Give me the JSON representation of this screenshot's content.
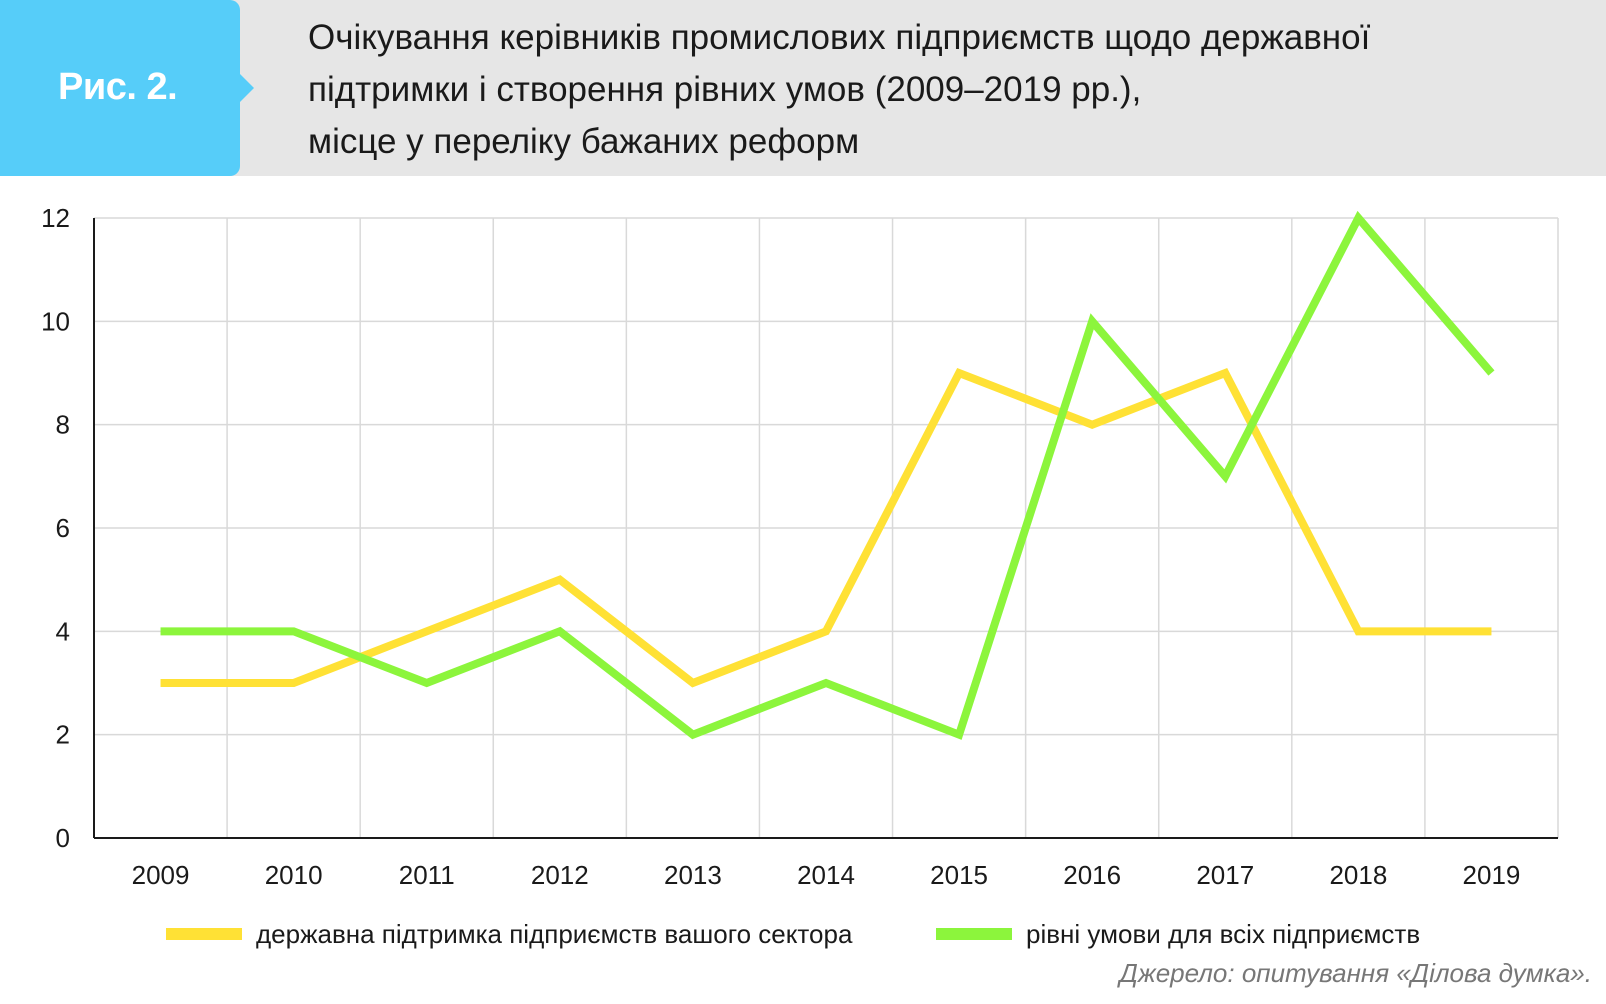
{
  "header": {
    "figure_label": "Рис. 2.",
    "title_lines": [
      "Очікування керівників промислових підприємств щодо державної",
      "підтримки і створення рівних умов (2009–2019 рр.),",
      "місце у переліку бажаних реформ"
    ]
  },
  "chart_data": {
    "type": "line",
    "title": "Очікування керівників промислових підприємств щодо державної підтримки і створення рівних умов (2009–2019 рр.), місце у переліку бажаних реформ",
    "xlabel": "",
    "ylabel": "",
    "categories": [
      "2009",
      "2010",
      "2011",
      "2012",
      "2013",
      "2014",
      "2015",
      "2016",
      "2017",
      "2018",
      "2019"
    ],
    "yticks": [
      "0",
      "2",
      "4",
      "6",
      "8",
      "10",
      "12"
    ],
    "ylim": [
      0,
      12
    ],
    "grid": true,
    "legend_position": "bottom",
    "series": [
      {
        "name": "державна підтримка підприємств вашого сектора",
        "color": "#ffe135",
        "values": [
          3,
          3,
          4,
          5,
          3,
          4,
          9,
          8,
          9,
          4,
          4
        ]
      },
      {
        "name": "рівні умови для всіх підприємств",
        "color": "#8cf53c",
        "values": [
          4,
          4,
          3,
          4,
          2,
          3,
          2,
          10,
          7,
          12,
          9
        ]
      }
    ]
  },
  "source": "Джерело: опитування «Ділова думка»."
}
